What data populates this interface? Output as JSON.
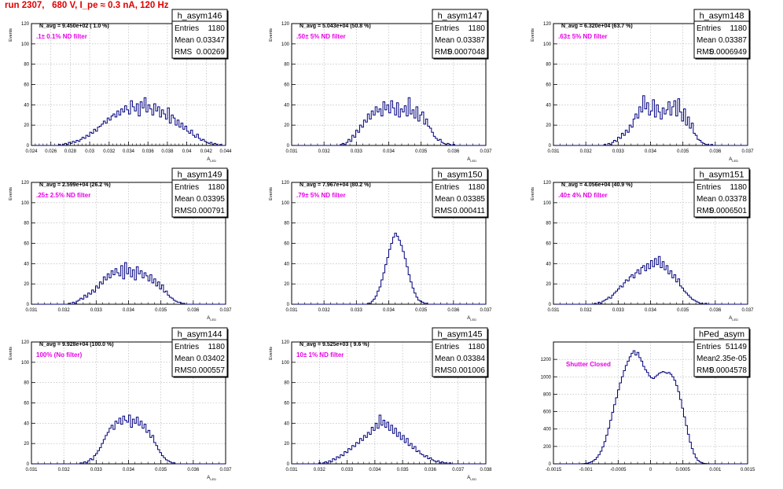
{
  "title": "run 2307,   680 V, I_pe ≈ 0.3 nA, 120 Hz",
  "colors": {
    "title": "#e00000",
    "histogram": "#00007f",
    "annotation": "#e800e8",
    "grid": "#b0b0b0"
  },
  "chart_data": [
    {
      "type": "histogram",
      "name": "h_asym146",
      "navg": "N_avg = 9.450e+02 ( 1.0 %)",
      "note": ".1± 0.1% ND filter",
      "stats": {
        "Entries": "1180",
        "Mean": "0.03347",
        "RMS": "0.00269"
      },
      "xlim": [
        0.024,
        0.044
      ],
      "xticks": [
        "0.024",
        "0.026",
        "0.028",
        "0.03",
        "0.032",
        "0.034",
        "0.036",
        "0.038",
        "0.04",
        "0.042",
        "0.044"
      ],
      "ylim": [
        0,
        120
      ],
      "yticks": [
        "0",
        "20",
        "40",
        "60",
        "80",
        "100",
        "120"
      ],
      "ylabel": "Events",
      "xlabel": "A",
      "values": [
        0,
        0,
        0,
        0,
        0,
        0,
        0,
        0,
        0,
        0,
        0,
        0,
        0,
        0,
        1,
        0,
        1,
        2,
        1,
        3,
        2,
        4,
        3,
        5,
        4,
        6,
        8,
        7,
        10,
        9,
        13,
        12,
        16,
        14,
        18,
        19,
        21,
        24,
        22,
        27,
        25,
        29,
        31,
        28,
        34,
        30,
        36,
        33,
        39,
        35,
        31,
        44,
        38,
        34,
        41,
        29,
        43,
        37,
        47,
        33,
        40,
        36,
        30,
        41,
        34,
        38,
        28,
        35,
        31,
        26,
        37,
        22,
        30,
        27,
        20,
        25,
        18,
        22,
        16,
        19,
        14,
        12,
        15,
        10,
        8,
        11,
        7,
        5,
        6,
        4,
        3,
        2,
        3,
        1,
        2,
        1,
        0,
        1,
        0,
        0
      ]
    },
    {
      "type": "histogram",
      "name": "h_asym147",
      "navg": "N_avg = 5.043e+04 (50.8 %)",
      "note": ".50± 5% ND filter",
      "stats": {
        "Entries": "1180",
        "Mean": "0.03387",
        "RMS": "0.0007048"
      },
      "xlim": [
        0.031,
        0.037
      ],
      "xticks": [
        "0.031",
        "0.032",
        "0.033",
        "0.034",
        "0.035",
        "0.036",
        "0.037"
      ],
      "ylim": [
        0,
        120
      ],
      "yticks": [
        "0",
        "20",
        "40",
        "60",
        "80",
        "100",
        "120"
      ],
      "ylabel": "Events",
      "xlabel": "A",
      "values": [
        0,
        0,
        0,
        0,
        0,
        0,
        0,
        0,
        0,
        0,
        0,
        0,
        0,
        0,
        0,
        0,
        0,
        0,
        0,
        0,
        0,
        0,
        0,
        0,
        0,
        1,
        2,
        1,
        3,
        6,
        4,
        10,
        8,
        15,
        13,
        20,
        18,
        25,
        23,
        31,
        26,
        34,
        30,
        38,
        33,
        36,
        29,
        43,
        35,
        40,
        32,
        44,
        37,
        30,
        42,
        28,
        36,
        33,
        39,
        29,
        47,
        31,
        35,
        27,
        38,
        24,
        30,
        33,
        21,
        26,
        19,
        17,
        13,
        9,
        7,
        5,
        6,
        3,
        2,
        1,
        2,
        1,
        0,
        1,
        0,
        0,
        0,
        0,
        0,
        0,
        0,
        0,
        0,
        0,
        0,
        0,
        0,
        0,
        0,
        0
      ]
    },
    {
      "type": "histogram",
      "name": "h_asym148",
      "navg": "N_avg = 6.320e+04 (63.7 %)",
      "note": ".63± 5% ND filter",
      "stats": {
        "Entries": "1180",
        "Mean": "0.03387",
        "RMS": "0.0006949"
      },
      "xlim": [
        0.031,
        0.037
      ],
      "xticks": [
        "0.031",
        "0.032",
        "0.033",
        "0.034",
        "0.035",
        "0.036",
        "0.037"
      ],
      "ylim": [
        0,
        120
      ],
      "yticks": [
        "0",
        "20",
        "40",
        "60",
        "80",
        "100",
        "120"
      ],
      "ylabel": "Events",
      "xlabel": "A",
      "values": [
        0,
        0,
        0,
        0,
        0,
        0,
        0,
        0,
        0,
        0,
        0,
        0,
        0,
        0,
        0,
        0,
        0,
        0,
        0,
        0,
        0,
        0,
        0,
        0,
        0,
        0,
        1,
        0,
        2,
        1,
        3,
        5,
        4,
        8,
        7,
        12,
        10,
        15,
        13,
        20,
        18,
        26,
        31,
        27,
        38,
        33,
        49,
        36,
        42,
        30,
        34,
        45,
        28,
        40,
        33,
        26,
        37,
        31,
        35,
        43,
        30,
        38,
        44,
        29,
        46,
        33,
        24,
        36,
        20,
        28,
        17,
        22,
        12,
        10,
        6,
        5,
        3,
        2,
        1,
        1,
        0,
        1,
        0,
        0,
        0,
        0,
        0,
        0,
        0,
        0,
        0,
        0,
        0,
        0,
        0,
        0,
        0,
        0,
        0,
        0
      ]
    },
    {
      "type": "histogram",
      "name": "h_asym149",
      "navg": "N_avg = 2.599e+04 (26.2 %)",
      "note": ".25± 2.5% ND filter",
      "stats": {
        "Entries": "1180",
        "Mean": "0.03395",
        "RMS": "0.000791"
      },
      "xlim": [
        0.031,
        0.037
      ],
      "xticks": [
        "0.031",
        "0.032",
        "0.033",
        "0.034",
        "0.035",
        "0.036",
        "0.037"
      ],
      "ylim": [
        0,
        120
      ],
      "yticks": [
        "0",
        "20",
        "40",
        "60",
        "80",
        "100",
        "120"
      ],
      "ylabel": "Events",
      "xlabel": "A",
      "values": [
        0,
        0,
        0,
        0,
        0,
        0,
        0,
        0,
        0,
        0,
        0,
        0,
        0,
        0,
        0,
        0,
        0,
        0,
        0,
        1,
        0,
        2,
        1,
        3,
        4,
        6,
        5,
        9,
        7,
        11,
        10,
        14,
        12,
        18,
        16,
        22,
        20,
        27,
        24,
        30,
        26,
        33,
        29,
        35,
        31,
        28,
        38,
        25,
        41,
        30,
        36,
        27,
        34,
        24,
        37,
        30,
        33,
        26,
        31,
        28,
        23,
        29,
        21,
        25,
        18,
        22,
        15,
        19,
        12,
        13,
        9,
        7,
        6,
        4,
        3,
        2,
        2,
        1,
        1,
        0,
        0,
        0,
        0,
        0,
        0,
        0,
        0,
        0,
        0,
        0,
        0,
        0,
        0,
        0,
        0,
        0,
        0,
        0,
        0,
        0
      ]
    },
    {
      "type": "histogram",
      "name": "h_asym150",
      "navg": "N_avg = 7.967e+04 (80.2 %)",
      "note": ".79± 5% ND filter",
      "stats": {
        "Entries": "1180",
        "Mean": "0.03385",
        "RMS": "0.000411"
      },
      "xlim": [
        0.031,
        0.037
      ],
      "xticks": [
        "0.031",
        "0.032",
        "0.033",
        "0.034",
        "0.035",
        "0.036",
        "0.037"
      ],
      "ylim": [
        0,
        120
      ],
      "yticks": [
        "0",
        "20",
        "40",
        "60",
        "80",
        "100",
        "120"
      ],
      "ylabel": "Events",
      "xlabel": "A",
      "values": [
        0,
        0,
        0,
        0,
        0,
        0,
        0,
        0,
        0,
        0,
        0,
        0,
        0,
        0,
        0,
        0,
        0,
        0,
        0,
        0,
        0,
        0,
        0,
        0,
        0,
        0,
        0,
        0,
        0,
        0,
        0,
        0,
        0,
        0,
        0,
        0,
        0,
        0,
        0,
        1,
        1,
        3,
        5,
        8,
        13,
        17,
        24,
        31,
        39,
        46,
        54,
        60,
        66,
        70,
        67,
        63,
        58,
        52,
        45,
        37,
        29,
        22,
        16,
        11,
        7,
        4,
        3,
        2,
        1,
        1,
        0,
        0,
        0,
        0,
        0,
        0,
        0,
        0,
        0,
        0,
        0,
        0,
        0,
        0,
        0,
        0,
        0,
        0,
        0,
        0,
        0,
        0,
        0,
        0,
        0,
        0,
        0,
        0,
        0,
        0
      ]
    },
    {
      "type": "histogram",
      "name": "h_asym151",
      "navg": "N_avg = 4.056e+04 (40.9 %)",
      "note": ".40± 4% ND filter",
      "stats": {
        "Entries": "1180",
        "Mean": "0.03378",
        "RMS": "0.0006501"
      },
      "xlim": [
        0.031,
        0.037
      ],
      "xticks": [
        "0.031",
        "0.032",
        "0.033",
        "0.034",
        "0.035",
        "0.036",
        "0.037"
      ],
      "ylim": [
        0,
        120
      ],
      "yticks": [
        "0",
        "20",
        "40",
        "60",
        "80",
        "100",
        "120"
      ],
      "ylabel": "Events",
      "xlabel": "A",
      "values": [
        0,
        0,
        0,
        0,
        0,
        0,
        0,
        0,
        0,
        0,
        0,
        0,
        0,
        0,
        0,
        0,
        0,
        0,
        0,
        0,
        0,
        1,
        0,
        2,
        1,
        3,
        4,
        5,
        7,
        6,
        9,
        11,
        13,
        15,
        18,
        17,
        21,
        24,
        23,
        27,
        29,
        26,
        31,
        34,
        30,
        36,
        38,
        33,
        40,
        35,
        43,
        37,
        45,
        39,
        47,
        36,
        42,
        34,
        38,
        30,
        33,
        26,
        29,
        22,
        25,
        18,
        16,
        13,
        11,
        9,
        7,
        5,
        4,
        3,
        2,
        1,
        1,
        0,
        1,
        0,
        0,
        0,
        0,
        0,
        0,
        0,
        0,
        0,
        0,
        0,
        0,
        0,
        0,
        0,
        0,
        0,
        0,
        0,
        0,
        0
      ]
    },
    {
      "type": "histogram",
      "name": "h_asym144",
      "navg": "N_avg = 9.928e+04 (100.0 %)",
      "note": "100% (No filter)",
      "stats": {
        "Entries": "1180",
        "Mean": "0.03402",
        "RMS": "0.000557"
      },
      "xlim": [
        0.031,
        0.037
      ],
      "xticks": [
        "0.031",
        "0.032",
        "0.033",
        "0.034",
        "0.035",
        "0.036",
        "0.037"
      ],
      "ylim": [
        0,
        120
      ],
      "yticks": [
        "0",
        "20",
        "40",
        "60",
        "80",
        "100",
        "120"
      ],
      "ylabel": "Events",
      "xlabel": "A",
      "values": [
        0,
        0,
        0,
        0,
        0,
        0,
        0,
        0,
        0,
        0,
        0,
        0,
        0,
        0,
        0,
        0,
        0,
        0,
        0,
        0,
        0,
        0,
        0,
        0,
        0,
        1,
        0,
        2,
        1,
        3,
        5,
        4,
        8,
        10,
        13,
        16,
        20,
        24,
        28,
        31,
        35,
        38,
        34,
        42,
        40,
        45,
        39,
        47,
        43,
        41,
        48,
        36,
        44,
        40,
        46,
        38,
        42,
        35,
        39,
        31,
        33,
        26,
        28,
        21,
        18,
        14,
        11,
        8,
        6,
        4,
        3,
        2,
        1,
        1,
        0,
        0,
        0,
        0,
        0,
        0,
        0,
        0,
        0,
        0,
        0,
        0,
        0,
        0,
        0,
        0,
        0,
        0,
        0,
        0,
        0,
        0,
        0,
        0,
        0,
        0
      ]
    },
    {
      "type": "histogram",
      "name": "h_asym145",
      "navg": "N_avg = 9.525e+03 ( 9.6 %)",
      "note": "10± 1% ND filter",
      "stats": {
        "Entries": "1180",
        "Mean": "0.03384",
        "RMS": "0.001006"
      },
      "xlim": [
        0.031,
        0.038
      ],
      "xticks": [
        "0.031",
        "0.032",
        "0.033",
        "0.034",
        "0.035",
        "0.036",
        "0.037",
        "0.038"
      ],
      "ylim": [
        0,
        120
      ],
      "yticks": [
        "0",
        "20",
        "40",
        "60",
        "80",
        "100",
        "120"
      ],
      "ylabel": "Events",
      "xlabel": "A",
      "values": [
        0,
        0,
        0,
        0,
        0,
        0,
        0,
        0,
        0,
        0,
        0,
        0,
        0,
        0,
        1,
        0,
        1,
        2,
        1,
        3,
        2,
        5,
        4,
        7,
        6,
        9,
        8,
        12,
        11,
        15,
        14,
        18,
        17,
        21,
        20,
        25,
        23,
        28,
        26,
        31,
        29,
        36,
        33,
        40,
        35,
        48,
        38,
        43,
        36,
        41,
        33,
        38,
        30,
        35,
        27,
        31,
        24,
        28,
        21,
        25,
        18,
        20,
        15,
        17,
        12,
        13,
        10,
        9,
        7,
        8,
        5,
        6,
        4,
        3,
        2,
        3,
        1,
        2,
        1,
        1,
        0,
        1,
        0,
        0,
        0,
        0,
        0,
        0,
        0,
        0,
        0,
        0,
        0,
        0,
        0,
        0,
        0,
        0,
        0,
        0
      ]
    },
    {
      "type": "histogram",
      "name": "hPed_asym",
      "navg": "",
      "note": "Shutter Closed",
      "stats": {
        "Entries": "51149",
        "Mean": "2.35e-05",
        "RMS": "0.0004578"
      },
      "xlim": [
        -0.0015,
        0.0015
      ],
      "xticks": [
        "-0.0015",
        "-0.001",
        "-0.0005",
        "0",
        "0.0005",
        "0.001",
        "0.0015"
      ],
      "ylim": [
        0,
        1400
      ],
      "yticks": [
        "0",
        "200",
        "400",
        "600",
        "800",
        "1000",
        "1200"
      ],
      "ylabel": "",
      "xlabel": "",
      "values": [
        0,
        0,
        0,
        0,
        0,
        0,
        0,
        0,
        0,
        0,
        0,
        0,
        0,
        0,
        1,
        2,
        4,
        8,
        14,
        22,
        34,
        50,
        75,
        105,
        145,
        195,
        255,
        330,
        410,
        500,
        590,
        680,
        760,
        850,
        930,
        1000,
        1070,
        1130,
        1180,
        1230,
        1270,
        1300,
        1250,
        1280,
        1220,
        1180,
        1120,
        1080,
        1050,
        1010,
        990,
        980,
        1000,
        1020,
        1040,
        1050,
        1060,
        1050,
        1040,
        1050,
        1030,
        1000,
        960,
        900,
        830,
        740,
        640,
        540,
        440,
        340,
        250,
        175,
        115,
        70,
        40,
        22,
        12,
        6,
        3,
        1,
        0,
        0,
        0,
        0,
        0,
        0,
        0,
        0,
        0,
        0,
        0,
        0,
        0,
        0,
        0,
        0,
        0,
        0,
        0,
        0
      ]
    }
  ]
}
